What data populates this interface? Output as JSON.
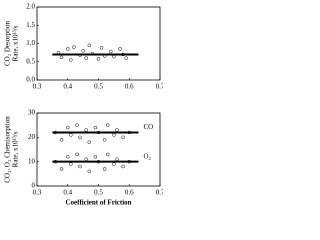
{
  "chart_data": [
    {
      "type": "scatter",
      "ylabel": [
        "CO₂ Desorption",
        "Rate, x10¹³/s"
      ],
      "xlim": [
        0.3,
        0.7
      ],
      "xticks": [
        0.3,
        0.4,
        0.5,
        0.6,
        0.7
      ],
      "ylim": [
        0,
        2
      ],
      "yticks": [
        {
          "value": 0,
          "label": "0.0"
        },
        0.5,
        {
          "value": 1,
          "label": "1.0"
        },
        1.5,
        {
          "value": 2,
          "label": "2.0"
        }
      ],
      "color": "#000000",
      "series": [
        {
          "mode": "markers",
          "x": [
            0.37,
            0.38,
            0.4,
            0.41,
            0.42,
            0.44,
            0.45,
            0.46,
            0.47,
            0.48,
            0.5,
            0.51,
            0.52,
            0.54,
            0.55,
            0.57,
            0.58,
            0.59
          ],
          "values": [
            0.75,
            0.62,
            0.85,
            0.55,
            0.9,
            0.68,
            0.8,
            0.6,
            0.95,
            0.72,
            0.58,
            0.88,
            0.66,
            0.78,
            0.64,
            0.85,
            0.7,
            0.6
          ]
        },
        {
          "mode": "line",
          "x": [
            0.35,
            0.63
          ],
          "values": [
            0.7,
            0.7
          ]
        }
      ]
    },
    {
      "type": "scatter",
      "ylabel": [
        "CO₂, O₂ Chemisorption",
        "Rate, x10¹³/s"
      ],
      "xlabel": "Coefficient of Friction",
      "xlim": [
        0.3,
        0.7
      ],
      "xticks": [
        0.3,
        0.4,
        0.5,
        0.6,
        0.7
      ],
      "ylim": [
        0,
        30
      ],
      "yticks": [
        0,
        10,
        20,
        30
      ],
      "color": "#000000",
      "series": [
        {
          "mode": "markers",
          "x": [
            0.36,
            0.38,
            0.4,
            0.41,
            0.43,
            0.44,
            0.46,
            0.47,
            0.49,
            0.5,
            0.52,
            0.53,
            0.55,
            0.56,
            0.58,
            0.6
          ],
          "values": [
            22,
            19,
            24,
            21,
            25,
            20,
            23,
            18,
            24,
            22,
            19,
            25,
            21,
            23,
            20,
            22
          ]
        },
        {
          "mode": "line",
          "name": "CO",
          "x": [
            0.35,
            0.63
          ],
          "values": [
            22,
            22
          ]
        },
        {
          "mode": "markers",
          "x": [
            0.36,
            0.38,
            0.4,
            0.41,
            0.43,
            0.44,
            0.46,
            0.47,
            0.49,
            0.5,
            0.52,
            0.53,
            0.55,
            0.56,
            0.58,
            0.6
          ],
          "values": [
            10,
            7,
            12,
            9,
            13,
            8,
            11,
            6,
            12,
            10,
            7,
            13,
            9,
            11,
            8,
            10
          ]
        },
        {
          "mode": "line",
          "name": "O₂",
          "x": [
            0.35,
            0.63
          ],
          "values": [
            10,
            10
          ]
        }
      ]
    }
  ]
}
